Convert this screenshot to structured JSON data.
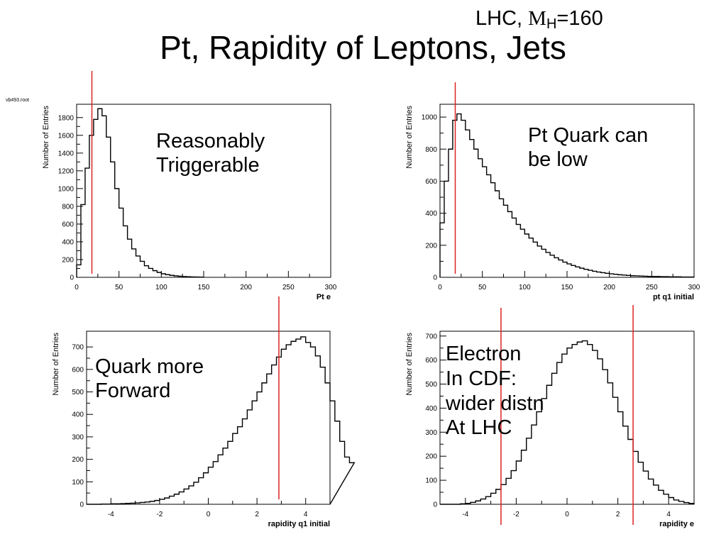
{
  "slide": {
    "title": "Pt, Rapidity of Leptons, Jets",
    "context_prefix": "LHC, ",
    "context_m": "M",
    "context_sub": "H",
    "context_suffix": "=160",
    "file_label": "vb493.root"
  },
  "notes": [
    {
      "lines": [
        "Reasonably",
        "Triggerable"
      ]
    },
    {
      "lines": [
        "Pt Quark can",
        "be low"
      ]
    },
    {
      "lines": [
        "Quark more",
        "Forward"
      ]
    },
    {
      "lines": [
        "Electron",
        "In CDF:",
        "wider distn",
        "At LHC"
      ]
    }
  ],
  "colors": {
    "histogram": "#000000",
    "cut_line": "#dd2222",
    "frame": "#000000"
  },
  "chart_data": [
    {
      "type": "histogram",
      "xlabel": "Pt e",
      "ylabel": "Number of Entries",
      "xlim": [
        0,
        300
      ],
      "ylim": [
        0,
        1950
      ],
      "xticks": [
        0,
        50,
        100,
        150,
        200,
        250,
        300
      ],
      "yticks": [
        0,
        200,
        400,
        600,
        800,
        1000,
        1200,
        1400,
        1600,
        1800
      ],
      "bin_width": 5,
      "values": [
        140,
        820,
        1230,
        1600,
        1780,
        1900,
        1820,
        1580,
        1300,
        1000,
        780,
        580,
        430,
        320,
        240,
        180,
        130,
        100,
        75,
        55,
        40,
        30,
        22,
        16,
        12,
        8,
        6,
        4,
        3,
        2
      ],
      "cut_lines": [
        18
      ]
    },
    {
      "type": "histogram",
      "xlabel": "pt q1 initial",
      "ylabel": "Number of Entries",
      "xlim": [
        0,
        300
      ],
      "ylim": [
        0,
        1080
      ],
      "xticks": [
        0,
        50,
        100,
        150,
        200,
        250,
        300
      ],
      "yticks": [
        0,
        200,
        400,
        600,
        800,
        1000
      ],
      "bin_width": 5,
      "values": [
        340,
        600,
        800,
        980,
        1020,
        980,
        920,
        860,
        800,
        740,
        690,
        640,
        590,
        540,
        490,
        450,
        410,
        370,
        330,
        300,
        270,
        245,
        220,
        195,
        175,
        155,
        138,
        122,
        108,
        95,
        84,
        74,
        65,
        57,
        50,
        44,
        38,
        33,
        29,
        25,
        22,
        19,
        16,
        14,
        12,
        10,
        9,
        8,
        7,
        6,
        5,
        5,
        4,
        4,
        3,
        3,
        3,
        2,
        2,
        2
      ],
      "cut_lines": [
        18
      ]
    },
    {
      "type": "histogram",
      "xlabel": "rapidity q1 initial",
      "ylabel": "Number of Entries",
      "xlim": [
        -5,
        5
      ],
      "ylim": [
        0,
        770
      ],
      "xticks": [
        -4,
        -2,
        0,
        2,
        4
      ],
      "yticks": [
        0,
        100,
        200,
        300,
        400,
        500,
        600,
        700
      ],
      "bin_start": -5,
      "bin_width": 0.2,
      "values": [
        0,
        0,
        0,
        1,
        1,
        2,
        2,
        3,
        4,
        5,
        6,
        8,
        10,
        13,
        17,
        22,
        28,
        36,
        45,
        55,
        68,
        82,
        98,
        118,
        140,
        165,
        190,
        220,
        250,
        280,
        315,
        345,
        380,
        420,
        460,
        500,
        540,
        580,
        620,
        655,
        690,
        710,
        725,
        735,
        745,
        720,
        700,
        660,
        610,
        540,
        460,
        370,
        280,
        210,
        185
      ],
      "cut_lines": [
        2.9
      ]
    },
    {
      "type": "histogram",
      "xlabel": "rapidity e",
      "ylabel": "Number of Entries",
      "xlim": [
        -5,
        5
      ],
      "ylim": [
        0,
        720
      ],
      "xticks": [
        -4,
        -2,
        0,
        2,
        4
      ],
      "yticks": [
        0,
        100,
        200,
        300,
        400,
        500,
        600,
        700
      ],
      "bin_start": -5,
      "bin_width": 0.2,
      "values": [
        0,
        0,
        0,
        0,
        2,
        4,
        8,
        14,
        22,
        32,
        46,
        62,
        82,
        108,
        140,
        180,
        225,
        275,
        330,
        385,
        440,
        495,
        545,
        590,
        625,
        650,
        665,
        675,
        680,
        665,
        640,
        605,
        560,
        505,
        445,
        385,
        325,
        270,
        220,
        175,
        138,
        105,
        80,
        58,
        42,
        28,
        18,
        12,
        7,
        4
      ],
      "cut_lines": [
        -2.6,
        2.6
      ]
    }
  ]
}
